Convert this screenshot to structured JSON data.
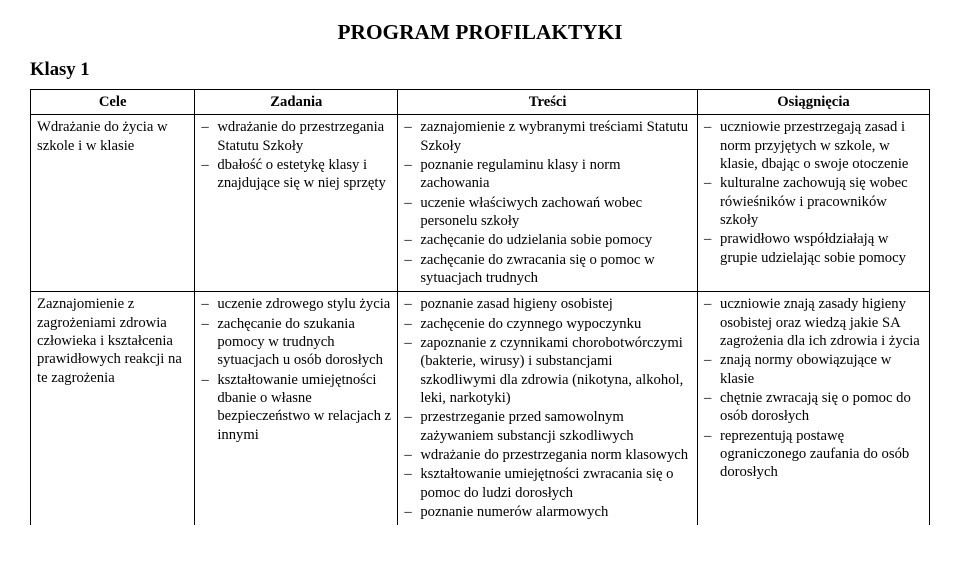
{
  "title": "PROGRAM PROFILAKTYKI",
  "heading": "Klasy 1",
  "table": {
    "columns": [
      "Cele",
      "Zadania",
      "Treści",
      "Osiągnięcia"
    ],
    "rows": [
      {
        "cele_text": "Wdrażanie do życia w szkole i w klasie",
        "zadania": [
          "wdrażanie do przestrzegania Statutu Szkoły",
          "dbałość o estetykę klasy i znajdujące się w niej sprzęty"
        ],
        "tresci": [
          "zaznajomienie z wybranymi treściami Statutu Szkoły",
          "poznanie regulaminu klasy i norm zachowania",
          "uczenie właściwych zachowań wobec personelu szkoły",
          "zachęcanie do udzielania sobie pomocy",
          "zachęcanie do zwracania się o pomoc w sytuacjach trudnych"
        ],
        "osiagniecia": [
          "uczniowie przestrzegają zasad i norm przyjętych w szkole, w klasie, dbając o swoje otoczenie",
          "kulturalne zachowują się wobec rówieśników i pracowników szkoły",
          "prawidłowo współdziałają w grupie udzielając sobie pomocy"
        ]
      },
      {
        "cele_text": "Zaznajomienie z zagrożeniami zdrowia człowieka i kształcenia prawidłowych reakcji na te zagrożenia",
        "zadania": [
          "uczenie zdrowego stylu życia",
          "zachęcanie do szukania pomocy w trudnych sytuacjach u osób dorosłych",
          "kształtowanie umiejętności dbanie o własne bezpieczeństwo w relacjach z innymi"
        ],
        "tresci": [
          "poznanie zasad higieny osobistej",
          "zachęcenie do czynnego wypoczynku",
          "zapoznanie z czynnikami chorobotwórczymi (bakterie, wirusy) i substancjami szkodliwymi dla zdrowia (nikotyna, alkohol, leki, narkotyki)",
          "przestrzeganie przed samowolnym zażywaniem substancji szkodliwych",
          "wdrażanie do przestrzegania norm klasowych",
          "kształtowanie umiejętności zwracania się o pomoc do ludzi dorosłych",
          "poznanie numerów alarmowych"
        ],
        "osiagniecia": [
          "uczniowie znają zasady higieny osobistej oraz wiedzą jakie SA zagrożenia dla ich zdrowia i życia",
          "znają normy obowiązujące w klasie",
          "chętnie zwracają się o pomoc do osób dorosłych",
          "reprezentują postawę ograniczonego zaufania do osób dorosłych"
        ]
      }
    ]
  }
}
